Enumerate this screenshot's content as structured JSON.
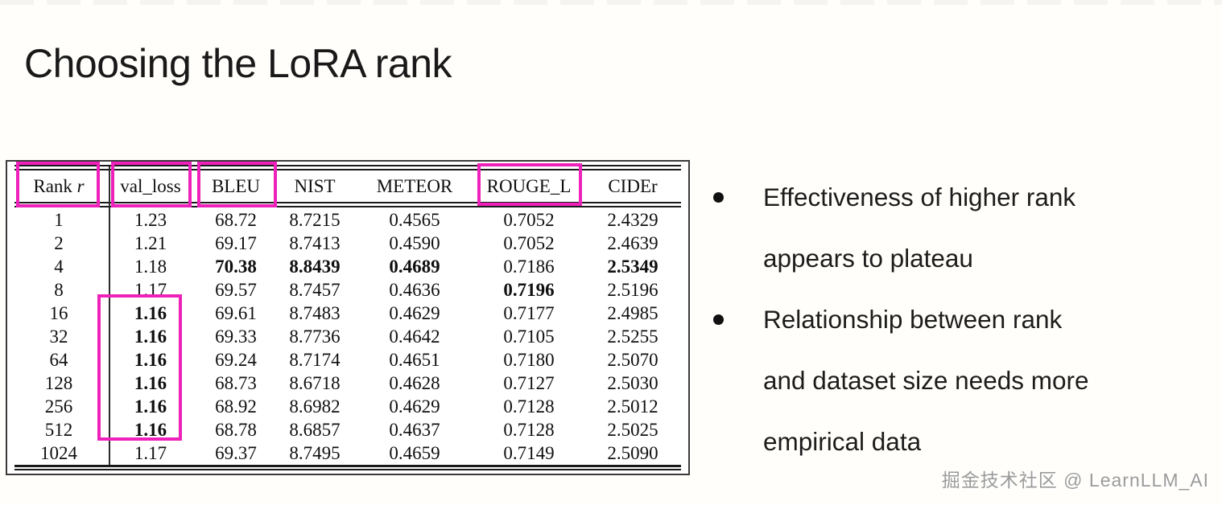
{
  "slide": {
    "title": "Choosing the LoRA rank",
    "watermark": "掘金技术社区 @ LearnLLM_AI"
  },
  "accent": {
    "highlight_color": "#ee22bb"
  },
  "bullets": [
    {
      "lines": [
        "Effectiveness of higher rank",
        "appears to plateau"
      ]
    },
    {
      "lines": [
        "Relationship between rank",
        "and dataset size needs more",
        "empirical data"
      ]
    }
  ],
  "chart_data": {
    "type": "table",
    "title": "",
    "headers": [
      {
        "label": "Rank ",
        "italic": "r"
      },
      {
        "label": "val_loss"
      },
      {
        "label": "BLEU"
      },
      {
        "label": "NIST"
      },
      {
        "label": "METEOR"
      },
      {
        "label": "ROUGE_L"
      },
      {
        "label": "CIDEr"
      }
    ],
    "rows": [
      [
        "1",
        "1.23",
        "68.72",
        "8.7215",
        "0.4565",
        "0.7052",
        "2.4329"
      ],
      [
        "2",
        "1.21",
        "69.17",
        "8.7413",
        "0.4590",
        "0.7052",
        "2.4639"
      ],
      [
        "4",
        "1.18",
        "70.38",
        "8.8439",
        "0.4689",
        "0.7186",
        "2.5349"
      ],
      [
        "8",
        "1.17",
        "69.57",
        "8.7457",
        "0.4636",
        "0.7196",
        "2.5196"
      ],
      [
        "16",
        "1.16",
        "69.61",
        "8.7483",
        "0.4629",
        "0.7177",
        "2.4985"
      ],
      [
        "32",
        "1.16",
        "69.33",
        "8.7736",
        "0.4642",
        "0.7105",
        "2.5255"
      ],
      [
        "64",
        "1.16",
        "69.24",
        "8.7174",
        "0.4651",
        "0.7180",
        "2.5070"
      ],
      [
        "128",
        "1.16",
        "68.73",
        "8.6718",
        "0.4628",
        "0.7127",
        "2.5030"
      ],
      [
        "256",
        "1.16",
        "68.92",
        "8.6982",
        "0.4629",
        "0.7128",
        "2.5012"
      ],
      [
        "512",
        "1.16",
        "68.78",
        "8.6857",
        "0.4637",
        "0.7128",
        "2.5025"
      ],
      [
        "1024",
        "1.17",
        "69.37",
        "8.7495",
        "0.4659",
        "0.7149",
        "2.5090"
      ]
    ],
    "bold_cells": [
      [
        2,
        2
      ],
      [
        2,
        3
      ],
      [
        2,
        4
      ],
      [
        2,
        6
      ],
      [
        3,
        5
      ],
      [
        4,
        1
      ],
      [
        5,
        1
      ],
      [
        6,
        1
      ],
      [
        7,
        1
      ],
      [
        8,
        1
      ],
      [
        9,
        1
      ]
    ],
    "highlighted_regions": [
      "Rank r header",
      "val_loss header",
      "BLEU header",
      "ROUGE_L header",
      "val_loss values for ranks 16-512"
    ]
  }
}
